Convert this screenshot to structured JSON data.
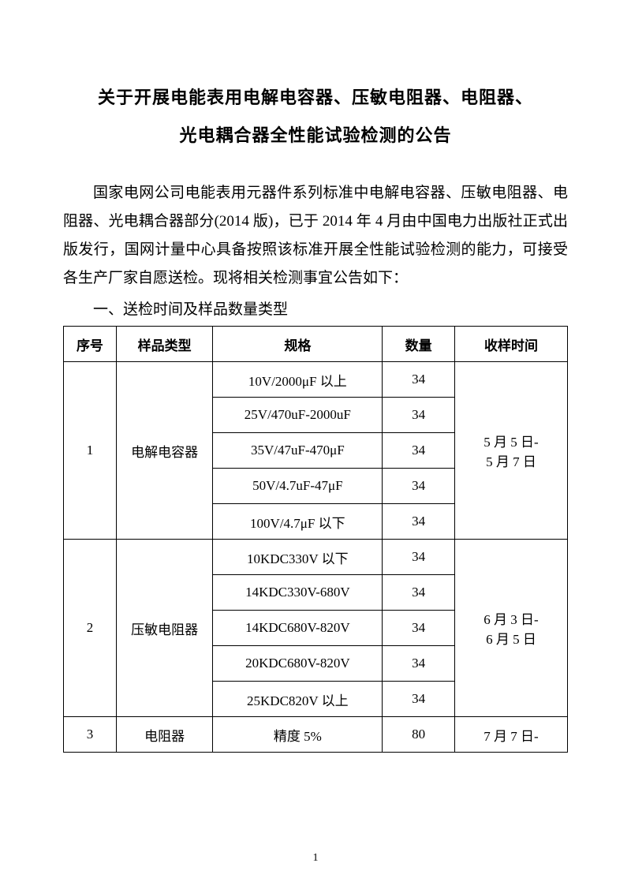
{
  "title_line1": "关于开展电能表用电解电容器、压敏电阻器、电阻器、",
  "title_line2": "光电耦合器全性能试验检测的公告",
  "paragraph": "国家电网公司电能表用元器件系列标准中电解电容器、压敏电阻器、电阻器、光电耦合器部分(2014 版)，已于 2014 年 4 月由中国电力出版社正式出版发行，国网计量中心具备按照该标准开展全性能试验检测的能力，可接受各生产厂家自愿送检。现将相关检测事宜公告如下：",
  "section1": "一、送检时间及样品数量类型",
  "table": {
    "headers": [
      "序号",
      "样品类型",
      "规格",
      "数量",
      "收样时间"
    ],
    "groups": [
      {
        "seq": "1",
        "type": "电解电容器",
        "time_l1": "5 月 5 日-",
        "time_l2": "5 月 7 日",
        "rows": [
          {
            "spec": "10V/2000μF 以上",
            "qty": "34"
          },
          {
            "spec": "25V/470uF-2000uF",
            "qty": "34"
          },
          {
            "spec": "35V/47uF-470μF",
            "qty": "34"
          },
          {
            "spec": "50V/4.7uF-47μF",
            "qty": "34"
          },
          {
            "spec": "100V/4.7μF 以下",
            "qty": "34"
          }
        ]
      },
      {
        "seq": "2",
        "type": "压敏电阻器",
        "time_l1": "6 月 3 日-",
        "time_l2": "6 月 5 日",
        "rows": [
          {
            "spec": "10KDC330V 以下",
            "qty": "34"
          },
          {
            "spec": "14KDC330V-680V",
            "qty": "34"
          },
          {
            "spec": "14KDC680V-820V",
            "qty": "34"
          },
          {
            "spec": "20KDC680V-820V",
            "qty": "34"
          },
          {
            "spec": "25KDC820V 以上",
            "qty": "34"
          }
        ]
      },
      {
        "seq": "3",
        "type": "电阻器",
        "time_l1": "7 月 7 日-",
        "rows": [
          {
            "spec": "精度 5%",
            "qty": "80"
          }
        ]
      }
    ]
  },
  "page_number": "1"
}
